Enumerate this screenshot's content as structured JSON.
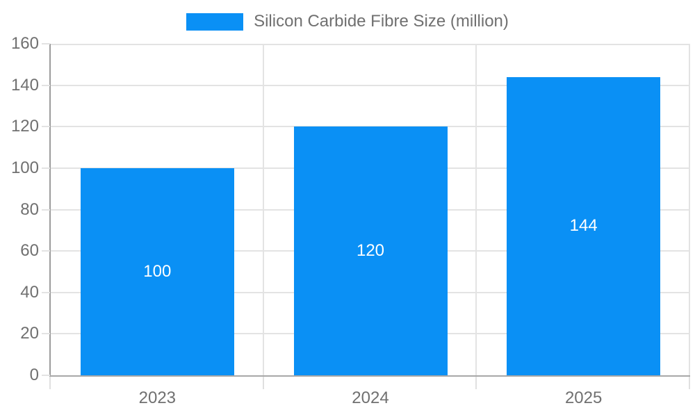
{
  "chart_data": {
    "type": "bar",
    "title": "",
    "categories": [
      "2023",
      "2024",
      "2025"
    ],
    "series": [
      {
        "name": "Silicon Carbide Fibre Size (million)",
        "values": [
          100,
          120,
          144
        ]
      }
    ],
    "legend": [
      "Silicon Carbide Fibre Size (million)"
    ],
    "legend_position": "top",
    "xlabel": "",
    "ylabel": "",
    "ylim": [
      0,
      160
    ],
    "ytick_step": 20,
    "yticks": [
      "0",
      "20",
      "40",
      "60",
      "80",
      "100",
      "120",
      "140",
      "160"
    ],
    "grid": true,
    "colors": {
      "bar": "#0a90f5",
      "data_label": "#ffffff",
      "axis_text": "#707070",
      "grid_line": "#e3e3e3",
      "axis_line": "#9c9c9c"
    }
  }
}
